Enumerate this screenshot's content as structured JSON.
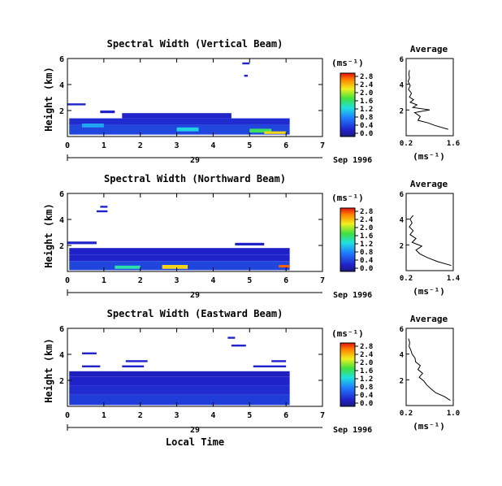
{
  "figure": {
    "x_axis_label": "Local Time",
    "date_label": "Sep 1996",
    "day_label": "29",
    "cbar_unit": "(ms⁻¹)",
    "avg_title": "Average",
    "avg_unit": "(ms⁻¹)",
    "y_axis_label": "Height (km)"
  },
  "chart_data": [
    {
      "type": "heatmap",
      "title": "Spectral Width (Vertical Beam)",
      "xlabel": "Local Time",
      "ylabel": "Height (km)",
      "xlim": [
        0,
        7
      ],
      "ylim": [
        0,
        6
      ],
      "x_ticks": [
        "0",
        "1",
        "2",
        "3",
        "4",
        "5",
        "6",
        "7"
      ],
      "y_ticks": [
        "2",
        "4",
        "6"
      ],
      "colorbar": {
        "unit": "(ms⁻¹)",
        "ticks": [
          "0.0",
          "0.4",
          "0.8",
          "1.2",
          "1.6",
          "2.0",
          "2.4",
          "2.8"
        ],
        "range": [
          0,
          2.8
        ]
      },
      "cells": [
        {
          "t0": 0.05,
          "t1": 6.1,
          "h0": 0.15,
          "h1": 0.9,
          "level": 0.5
        },
        {
          "t0": 0.05,
          "t1": 6.1,
          "h0": 0.9,
          "h1": 1.4,
          "level": 0.35
        },
        {
          "t0": 1.5,
          "t1": 4.5,
          "h0": 1.4,
          "h1": 1.8,
          "level": 0.3
        },
        {
          "t0": 0.9,
          "t1": 1.3,
          "h0": 1.8,
          "h1": 2.0,
          "level": 0.3
        },
        {
          "t0": 0.0,
          "t1": 0.5,
          "h0": 2.4,
          "h1": 2.55,
          "level": 0.3
        },
        {
          "t0": 4.85,
          "t1": 4.95,
          "h0": 4.6,
          "h1": 4.75,
          "level": 0.3
        },
        {
          "t0": 4.8,
          "t1": 5.0,
          "h0": 5.55,
          "h1": 5.7,
          "level": 0.3
        },
        {
          "t0": 5.0,
          "t1": 5.6,
          "h0": 0.3,
          "h1": 0.6,
          "level": 1.6
        },
        {
          "t0": 5.4,
          "t1": 6.0,
          "h0": 0.2,
          "h1": 0.4,
          "level": 2.2
        },
        {
          "t0": 3.0,
          "t1": 3.6,
          "h0": 0.4,
          "h1": 0.7,
          "level": 1.2
        },
        {
          "t0": 0.4,
          "t1": 1.0,
          "h0": 0.7,
          "h1": 1.0,
          "level": 1.0
        }
      ],
      "profile": {
        "xlim": [
          0.2,
          1.6
        ],
        "x_ticks": [
          "0.2",
          "1.6"
        ],
        "y_ticks": [
          "2",
          "4",
          "6"
        ],
        "height": [
          0.5,
          0.8,
          1.0,
          1.2,
          1.5,
          1.8,
          2.0,
          2.2,
          2.4,
          2.6,
          2.8,
          3.0,
          3.3,
          3.6,
          3.9,
          4.2,
          4.5,
          4.8,
          5.1
        ],
        "width": [
          1.45,
          1.05,
          0.85,
          0.55,
          0.62,
          0.45,
          0.9,
          0.4,
          0.52,
          0.32,
          0.42,
          0.3,
          0.36,
          0.27,
          0.32,
          0.26,
          0.3,
          0.28,
          0.3
        ]
      }
    },
    {
      "type": "heatmap",
      "title": "Spectral Width (Northward Beam)",
      "xlabel": "Local Time",
      "ylabel": "Height (km)",
      "xlim": [
        0,
        7
      ],
      "ylim": [
        0,
        6
      ],
      "x_ticks": [
        "0",
        "1",
        "2",
        "3",
        "4",
        "5",
        "6",
        "7"
      ],
      "y_ticks": [
        "2",
        "4",
        "6"
      ],
      "colorbar": {
        "unit": "(ms⁻¹)",
        "ticks": [
          "0.0",
          "0.4",
          "0.8",
          "1.2",
          "1.6",
          "2.0",
          "2.4",
          "2.8"
        ],
        "range": [
          0,
          2.8
        ]
      },
      "cells": [
        {
          "t0": 0.05,
          "t1": 6.1,
          "h0": 0.1,
          "h1": 0.8,
          "level": 0.5
        },
        {
          "t0": 0.05,
          "t1": 6.1,
          "h0": 0.8,
          "h1": 1.3,
          "level": 0.3
        },
        {
          "t0": 0.05,
          "t1": 6.1,
          "h0": 1.3,
          "h1": 1.8,
          "level": 0.28
        },
        {
          "t0": 0.0,
          "t1": 0.8,
          "h0": 2.1,
          "h1": 2.3,
          "level": 0.3
        },
        {
          "t0": 4.6,
          "t1": 5.4,
          "h0": 2.0,
          "h1": 2.2,
          "level": 0.3
        },
        {
          "t0": 0.8,
          "t1": 1.1,
          "h0": 4.55,
          "h1": 4.7,
          "level": 0.3
        },
        {
          "t0": 0.9,
          "t1": 1.1,
          "h0": 4.9,
          "h1": 5.05,
          "level": 0.3
        },
        {
          "t0": 2.6,
          "t1": 3.3,
          "h0": 0.2,
          "h1": 0.5,
          "level": 2.2
        },
        {
          "t0": 1.3,
          "t1": 2.0,
          "h0": 0.2,
          "h1": 0.45,
          "level": 1.4
        },
        {
          "t0": 5.8,
          "t1": 6.1,
          "h0": 0.3,
          "h1": 0.5,
          "level": 2.6
        }
      ],
      "profile": {
        "xlim": [
          0.2,
          1.4
        ],
        "x_ticks": [
          "0.2",
          "1.4"
        ],
        "y_ticks": [
          "2",
          "4",
          "6"
        ],
        "height": [
          0.4,
          0.7,
          1.0,
          1.3,
          1.6,
          1.9,
          2.2,
          2.5,
          2.8,
          3.1,
          3.4,
          3.7,
          4.0,
          4.3
        ],
        "width": [
          1.35,
          1.0,
          0.75,
          0.55,
          0.45,
          0.6,
          0.35,
          0.45,
          0.3,
          0.38,
          0.28,
          0.35,
          0.3,
          0.38
        ]
      }
    },
    {
      "type": "heatmap",
      "title": "Spectral Width (Eastward Beam)",
      "xlabel": "Local Time",
      "ylabel": "Height (km)",
      "xlim": [
        0,
        7
      ],
      "ylim": [
        0,
        6
      ],
      "x_ticks": [
        "0",
        "1",
        "2",
        "3",
        "4",
        "5",
        "6",
        "7"
      ],
      "y_ticks": [
        "2",
        "4",
        "6"
      ],
      "colorbar": {
        "unit": "(ms⁻¹)",
        "ticks": [
          "0.0",
          "0.4",
          "0.8",
          "1.2",
          "1.6",
          "2.0",
          "2.4",
          "2.8"
        ],
        "range": [
          0,
          2.8
        ]
      },
      "cells": [
        {
          "t0": 0.05,
          "t1": 6.1,
          "h0": 0.1,
          "h1": 0.9,
          "level": 0.45
        },
        {
          "t0": 0.05,
          "t1": 6.1,
          "h0": 0.9,
          "h1": 1.6,
          "level": 0.35
        },
        {
          "t0": 0.05,
          "t1": 6.1,
          "h0": 1.6,
          "h1": 2.3,
          "level": 0.3
        },
        {
          "t0": 0.05,
          "t1": 6.1,
          "h0": 2.3,
          "h1": 2.7,
          "level": 0.25
        },
        {
          "t0": 0.4,
          "t1": 0.9,
          "h0": 3.0,
          "h1": 3.15,
          "level": 0.3
        },
        {
          "t0": 1.5,
          "t1": 2.1,
          "h0": 3.0,
          "h1": 3.15,
          "level": 0.3
        },
        {
          "t0": 0.4,
          "t1": 0.8,
          "h0": 4.0,
          "h1": 4.15,
          "level": 0.3
        },
        {
          "t0": 1.6,
          "t1": 2.2,
          "h0": 3.4,
          "h1": 3.55,
          "level": 0.3
        },
        {
          "t0": 4.5,
          "t1": 4.9,
          "h0": 4.6,
          "h1": 4.75,
          "level": 0.3
        },
        {
          "t0": 5.1,
          "t1": 6.0,
          "h0": 3.0,
          "h1": 3.15,
          "level": 0.3
        },
        {
          "t0": 5.6,
          "t1": 6.0,
          "h0": 3.4,
          "h1": 3.55,
          "level": 0.3
        },
        {
          "t0": 4.4,
          "t1": 4.6,
          "h0": 5.2,
          "h1": 5.35,
          "level": 0.3
        }
      ],
      "profile": {
        "xlim": [
          0.2,
          1.0
        ],
        "x_ticks": [
          "0.2",
          "1.0"
        ],
        "y_ticks": [
          "2",
          "4",
          "6"
        ],
        "height": [
          0.4,
          0.7,
          1.0,
          1.3,
          1.6,
          1.9,
          2.2,
          2.5,
          2.8,
          3.1,
          3.4,
          3.7,
          4.0,
          4.3,
          4.6,
          4.9,
          5.2
        ],
        "width": [
          0.95,
          0.85,
          0.7,
          0.62,
          0.55,
          0.5,
          0.42,
          0.48,
          0.4,
          0.44,
          0.36,
          0.35,
          0.3,
          0.28,
          0.25,
          0.26,
          0.24
        ]
      }
    }
  ]
}
